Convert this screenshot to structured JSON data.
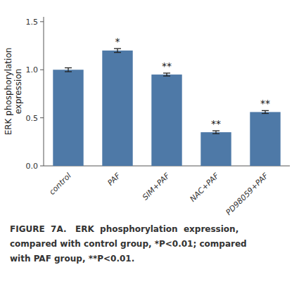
{
  "chart_data": {
    "type": "bar",
    "categories": [
      "control",
      "PAF",
      "SIM+PAF",
      "NAC+PAF",
      "PD98059+PAF"
    ],
    "values": [
      1.0,
      1.2,
      0.95,
      0.35,
      0.56
    ],
    "errors": [
      0.02,
      0.02,
      0.015,
      0.015,
      0.015
    ],
    "annotations": [
      null,
      "*",
      "**",
      "**",
      "**"
    ],
    "ylabel": "ERK phosphorylation\nexpression",
    "ylim": [
      0,
      1.55
    ],
    "yticks": [
      {
        "value": 0.0,
        "label": "0.0"
      },
      0.5,
      {
        "value": 1.0,
        "label": "1.0"
      },
      1.5
    ],
    "color": "#4e79a7",
    "grid": false,
    "caption": [
      "FIGURE  7A.   ERK  phosphorylation  expression,",
      "compared with control group, *P<0.01; compared",
      "with PAF group, **P<0.01."
    ]
  }
}
